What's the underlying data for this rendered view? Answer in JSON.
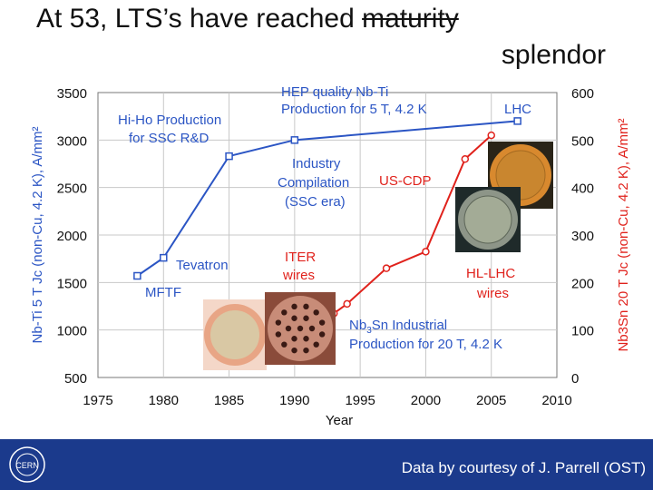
{
  "title": {
    "part1": "At 53, LTS’s have reached ",
    "struck": "maturity",
    "line2": "splendor"
  },
  "footer": {
    "credit": "Data by courtesy of J. Parrell (OST)",
    "logo_text": "CERN"
  },
  "colors": {
    "nbti": "#2b55c4",
    "nb3sn": "#e0221c",
    "footer": "#1b3a8c"
  },
  "chart_data": {
    "type": "line",
    "xlabel": "Year",
    "ylabel_left": "Nb-Ti 5 T Jc (non-Cu, 4.2 K), A/mm²",
    "ylabel_right": "Nb3Sn 20 T Jc (non-Cu, 4.2 K), A/mm²",
    "x_ticks": [
      "1975",
      "1980",
      "1985",
      "1990",
      "1995",
      "2000",
      "2005",
      "2010"
    ],
    "y_left_ticks": [
      "3500",
      "3000",
      "2500",
      "2000",
      "1500",
      "1000",
      "500"
    ],
    "y_right_ticks": [
      "600",
      "500",
      "400",
      "300",
      "200",
      "100",
      "0"
    ],
    "xlim": [
      1975,
      2010
    ],
    "ylim_left": [
      500,
      3500
    ],
    "ylim_right": [
      0,
      600
    ],
    "series": [
      {
        "name": "Nb-Ti",
        "axis": "left",
        "color": "#2b55c4",
        "marker": "square",
        "points": [
          [
            1978,
            1570
          ],
          [
            1980,
            1760
          ],
          [
            1985,
            2830
          ],
          [
            1990,
            3000
          ],
          [
            2007,
            3200
          ]
        ]
      },
      {
        "name": "Nb3Sn",
        "axis": "right",
        "color": "#e0221c",
        "marker": "circle",
        "points": [
          [
            1993,
            135
          ],
          [
            1994,
            155
          ],
          [
            1997,
            230
          ],
          [
            2000,
            265
          ],
          [
            2003,
            460
          ],
          [
            2005,
            510
          ]
        ]
      }
    ],
    "annotations": {
      "hiho": [
        "Hi-Ho Production",
        "for SSC R&D"
      ],
      "hep": [
        "HEP quality Nb-Ti",
        "Production for 5 T, 4.2 K"
      ],
      "lhc": "LHC",
      "industry": [
        "Industry",
        "Compilation",
        "(SSC era)"
      ],
      "uscdp": "US-CDP",
      "tevatron": "Tevatron",
      "mftf": "MFTF",
      "iter": [
        "ITER",
        "wires"
      ],
      "hllhc": [
        "HL-LHC",
        "wires"
      ],
      "nb3sn_prod_line1_a": "Nb",
      "nb3sn_prod_sub": "3",
      "nb3sn_prod_line1_b": "Sn Industrial",
      "nb3sn_prod_line2": "Production for 20 T, 4.2 K"
    }
  }
}
